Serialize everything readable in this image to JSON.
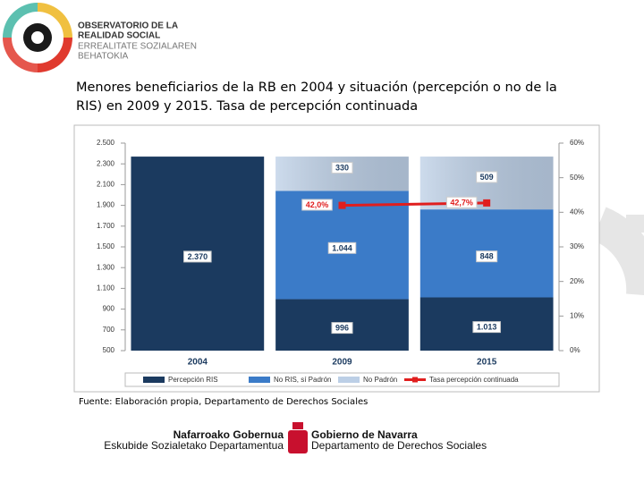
{
  "logo": {
    "lines": [
      "OBSERVATORIO DE LA",
      "REALIDAD SOCIAL",
      "ERREALITATE SOZIALAREN",
      "BEHATOKIA"
    ]
  },
  "title": "Menores beneficiarios de la RB en 2004 y situación (percepción o no de la RIS) en 2009 y 2015. Tasa de percepción continuada",
  "chart_data": {
    "type": "bar",
    "stacked": true,
    "categories": [
      "2004",
      "2009",
      "2015"
    ],
    "series": [
      {
        "name": "Percepción RIS",
        "color": "#1b3a5f",
        "values": [
          2370,
          996,
          1013
        ],
        "value_labels": [
          "2.370",
          "996",
          "1.013"
        ]
      },
      {
        "name": "No RIS, sí Padrón",
        "color": "#3b7bc8",
        "values": [
          null,
          1044,
          848
        ],
        "value_labels": [
          null,
          "1.044",
          "848"
        ]
      },
      {
        "name": "No Padrón",
        "color": "#bccfe6",
        "values": [
          null,
          330,
          509
        ],
        "value_labels": [
          null,
          "330",
          "509"
        ]
      },
      {
        "name": "Tasa percepción continuada",
        "color": "#e01e1e",
        "type": "line",
        "axis": "y2",
        "values": [
          null,
          42.0,
          42.7
        ],
        "value_labels": [
          null,
          "42,0%",
          "42,7%"
        ]
      }
    ],
    "ylim": [
      500,
      2500
    ],
    "yticks": [
      500,
      700,
      900,
      {
        "value": 1100,
        "label": "1.100"
      },
      {
        "value": 1300,
        "label": "1.300"
      },
      {
        "value": 1500,
        "label": "1.500"
      },
      {
        "value": 1700,
        "label": "1.700"
      },
      {
        "value": 1900,
        "label": "1.900"
      },
      {
        "value": 2100,
        "label": "2.100"
      },
      {
        "value": 2300,
        "label": "2.300"
      },
      {
        "value": 2500,
        "label": "2.500"
      }
    ],
    "y2lim": [
      0,
      60
    ],
    "y2ticks": [
      {
        "value": 0,
        "label": "0%"
      },
      {
        "value": 10,
        "label": "10%"
      },
      {
        "value": 20,
        "label": "20%"
      },
      {
        "value": 30,
        "label": "30%"
      },
      {
        "value": 40,
        "label": "40%"
      },
      {
        "value": 50,
        "label": "50%"
      },
      {
        "value": 60,
        "label": "60%"
      }
    ],
    "legend": "bottom"
  },
  "source": "Fuente: Elaboración propia, Departamento de Derechos Sociales",
  "footer": {
    "left": [
      "Nafarroako Gobernua",
      "Eskubide Sozialetako Departamentua"
    ],
    "right": [
      "Gobierno de Navarra",
      "Departamento de Derechos Sociales"
    ]
  }
}
